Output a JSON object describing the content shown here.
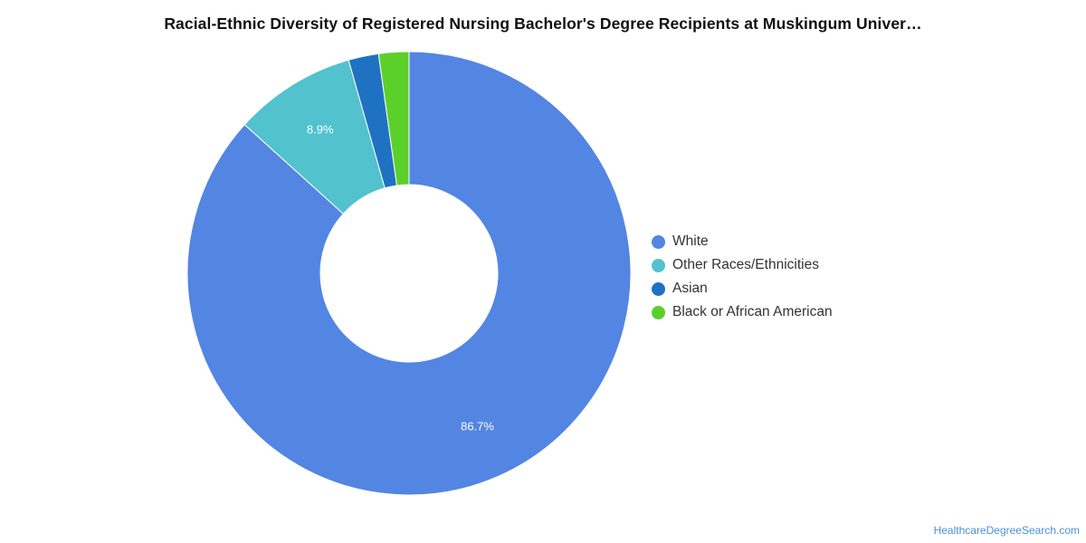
{
  "chart_data": {
    "type": "pie",
    "variant": "donut",
    "title": "Racial-Ethnic Diversity of Registered Nursing Bachelor's Degree Recipients at Muskingum Univer…",
    "slices": [
      {
        "label": "White",
        "value": 86.7,
        "display": "86.7%",
        "color": "#5385e3"
      },
      {
        "label": "Other Races/Ethnicities",
        "value": 8.9,
        "display": "8.9%",
        "color": "#51c2ce"
      },
      {
        "label": "Asian",
        "value": 2.2,
        "display": "",
        "color": "#1f72c2"
      },
      {
        "label": "Black or African American",
        "value": 2.2,
        "display": "",
        "color": "#5bd02a"
      }
    ],
    "legend_position": "right",
    "start_angle_deg": 0,
    "direction": "clockwise"
  },
  "footer": {
    "source": "HealthcareDegreeSearch.com"
  }
}
